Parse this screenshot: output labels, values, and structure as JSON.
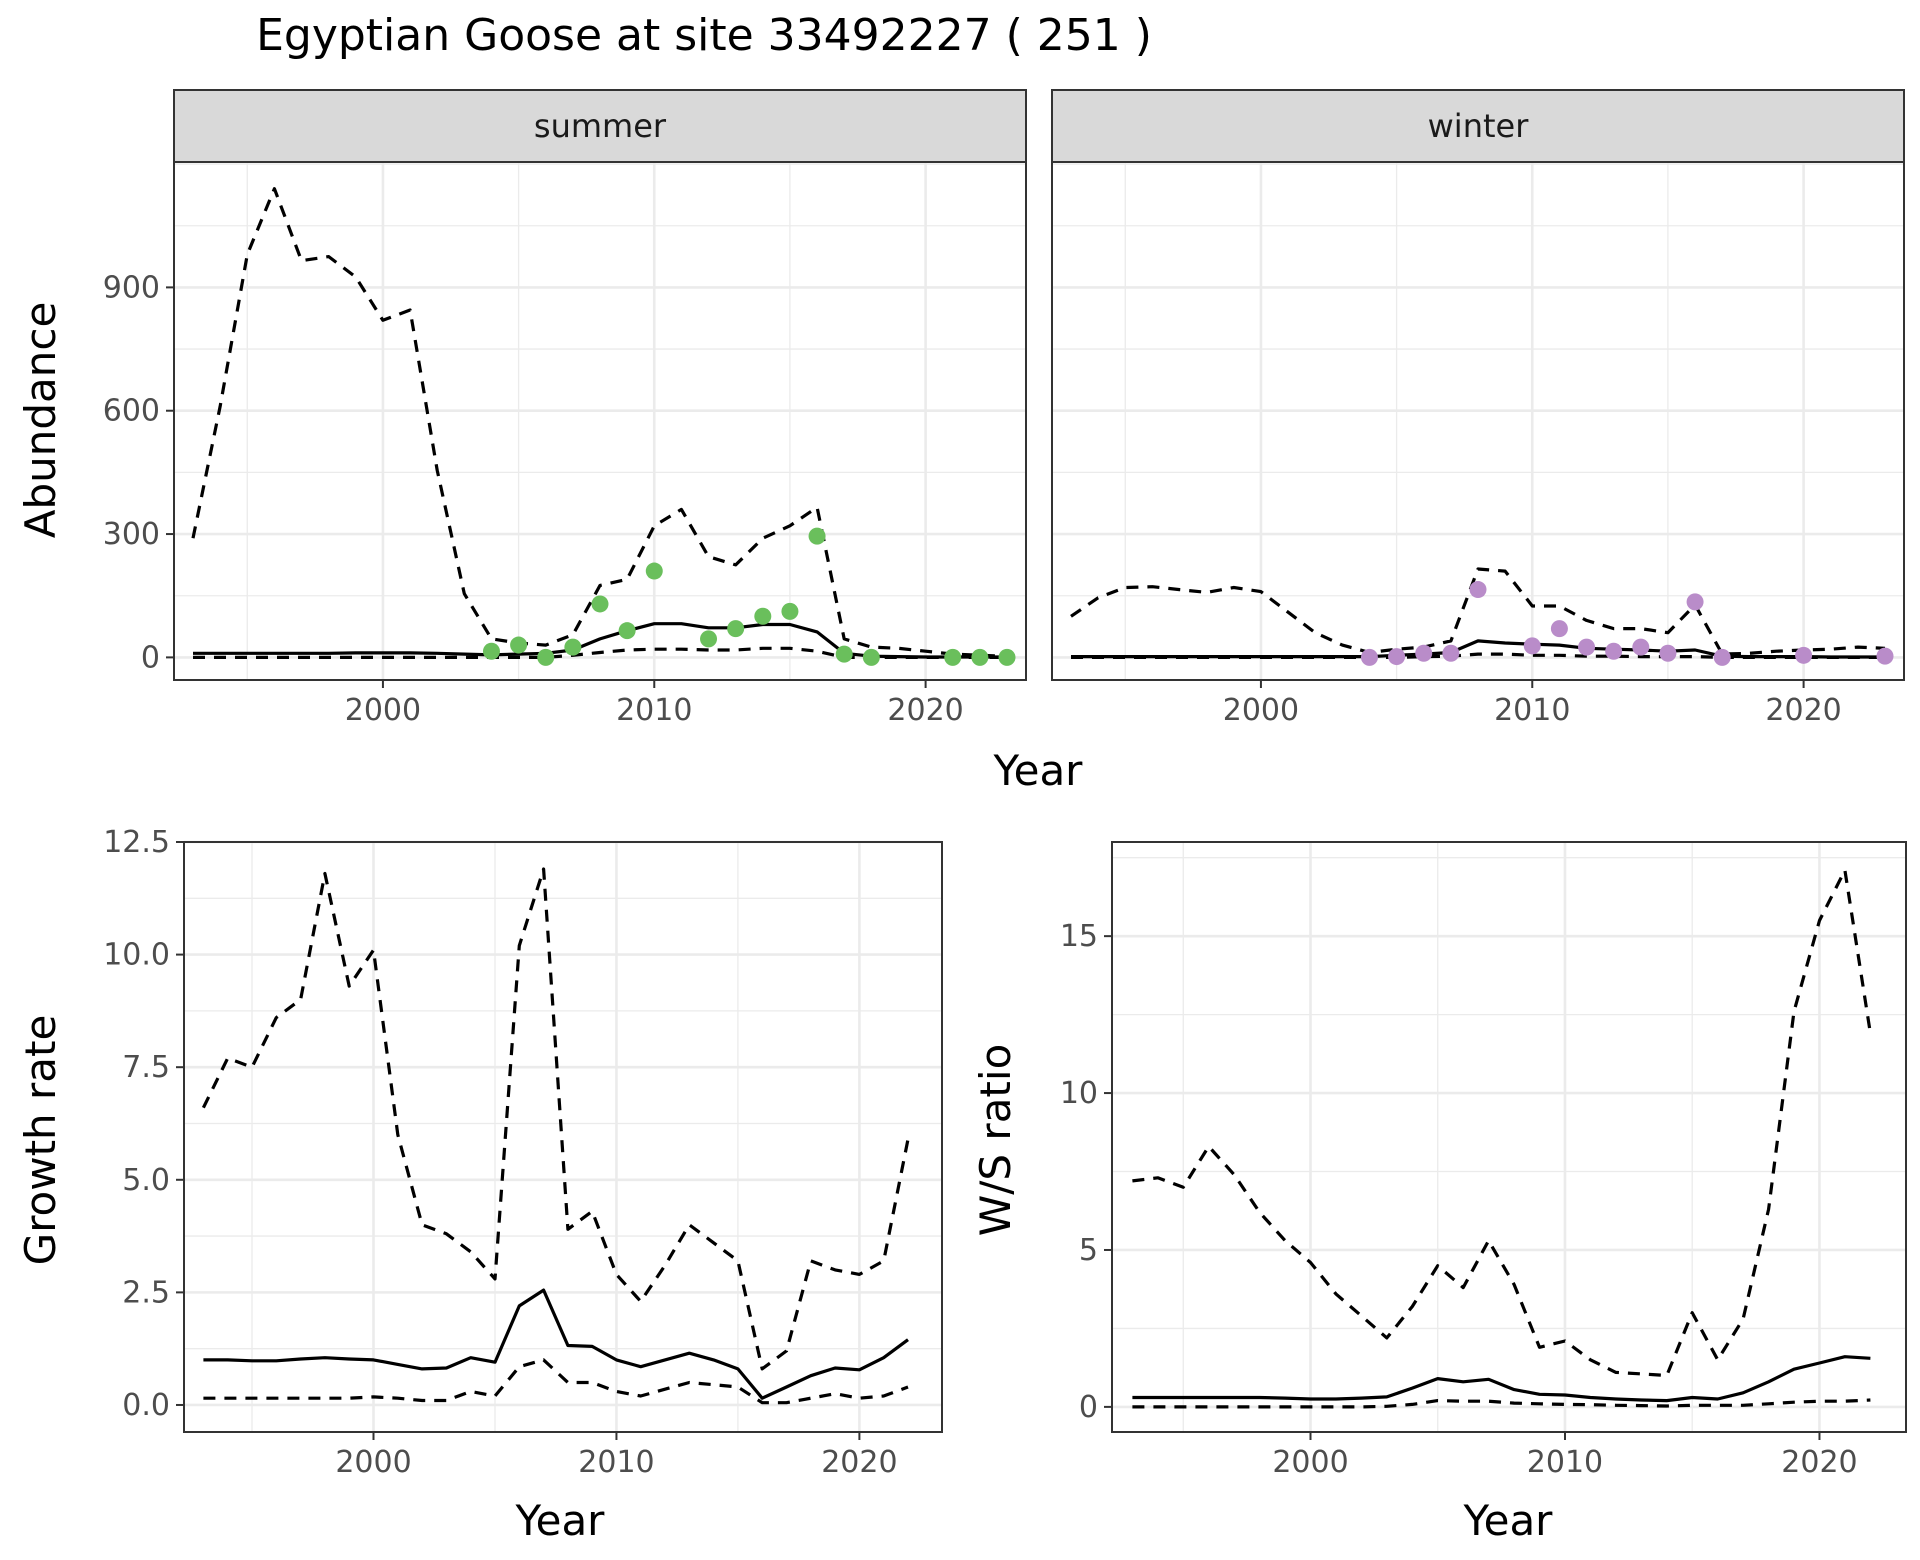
{
  "title": "Egyptian Goose at site 33492227 ( 251 )",
  "colors": {
    "summer_points": "#6abf5c",
    "winter_points": "#b98cc9",
    "lines": "#000000"
  },
  "shared": {
    "top_xlabel": "Year",
    "top_ylabel": "Abundance"
  },
  "chart_data": [
    {
      "type": "line",
      "facet": "summer",
      "xlim": [
        1992.3,
        2023.7
      ],
      "ylim": [
        -55,
        1205
      ],
      "x_ticks": [
        2000,
        2010,
        2020
      ],
      "y_ticks": [
        0,
        300,
        600,
        900
      ],
      "series": [
        {
          "style": "solid",
          "x": [
            1993,
            1994,
            1995,
            1996,
            1997,
            1998,
            1999,
            2000,
            2001,
            2002,
            2003,
            2004,
            2005,
            2006,
            2007,
            2008,
            2009,
            2010,
            2011,
            2012,
            2013,
            2014,
            2015,
            2016,
            2017,
            2018,
            2019,
            2020,
            2021,
            2022,
            2023
          ],
          "values": [
            10,
            10,
            10,
            10,
            10,
            10,
            11,
            11,
            11,
            10,
            8,
            6,
            8,
            10,
            18,
            45,
            65,
            82,
            82,
            72,
            72,
            80,
            80,
            62,
            10,
            3,
            2,
            1,
            1,
            1,
            1
          ]
        },
        {
          "style": "dashed",
          "x": [
            1993,
            1994,
            1995,
            1996,
            1997,
            1998,
            1999,
            2000,
            2001,
            2002,
            2003,
            2004,
            2005,
            2006,
            2007,
            2008,
            2009,
            2010,
            2011,
            2012,
            2013,
            2014,
            2015,
            2016,
            2017,
            2018,
            2019,
            2020,
            2021,
            2022,
            2023
          ],
          "values": [
            290,
            610,
            980,
            1140,
            965,
            975,
            925,
            820,
            845,
            455,
            155,
            45,
            35,
            30,
            55,
            175,
            190,
            320,
            360,
            245,
            225,
            290,
            320,
            365,
            45,
            25,
            22,
            15,
            8,
            5,
            3
          ]
        },
        {
          "style": "dashed",
          "x": [
            1993,
            1994,
            1995,
            1996,
            1997,
            1998,
            1999,
            2000,
            2001,
            2002,
            2003,
            2004,
            2005,
            2006,
            2007,
            2008,
            2009,
            2010,
            2011,
            2012,
            2013,
            2014,
            2015,
            2016,
            2017,
            2018,
            2019,
            2020,
            2021,
            2022,
            2023
          ],
          "values": [
            0,
            0,
            0,
            0,
            0,
            0,
            0,
            0,
            0,
            0,
            0,
            0,
            0,
            0,
            5,
            12,
            18,
            20,
            20,
            18,
            18,
            22,
            22,
            15,
            0,
            0,
            0,
            0,
            0,
            0,
            0
          ]
        },
        {
          "style": "points",
          "x": [
            2004,
            2005,
            2006,
            2007,
            2008,
            2009,
            2010,
            2012,
            2013,
            2014,
            2015,
            2016,
            2017,
            2018,
            2021,
            2022,
            2023
          ],
          "values": [
            15,
            30,
            0,
            25,
            130,
            65,
            210,
            45,
            70,
            100,
            112,
            295,
            8,
            0,
            0,
            0,
            0
          ]
        }
      ]
    },
    {
      "type": "line",
      "facet": "winter",
      "xlim": [
        1992.3,
        2023.7
      ],
      "ylim": [
        -55,
        1205
      ],
      "x_ticks": [
        2000,
        2010,
        2020
      ],
      "y_ticks": [],
      "series": [
        {
          "style": "solid",
          "x": [
            1993,
            1994,
            1995,
            1996,
            1997,
            1998,
            1999,
            2000,
            2001,
            2002,
            2003,
            2004,
            2005,
            2006,
            2007,
            2008,
            2009,
            2010,
            2011,
            2012,
            2013,
            2014,
            2015,
            2016,
            2017,
            2018,
            2019,
            2020,
            2021,
            2022,
            2023
          ],
          "values": [
            2,
            2,
            2,
            2,
            2,
            2,
            2,
            2,
            2,
            2,
            2,
            2,
            5,
            8,
            12,
            40,
            35,
            32,
            30,
            22,
            20,
            18,
            15,
            18,
            3,
            2,
            2,
            2,
            1,
            1,
            1
          ]
        },
        {
          "style": "dashed",
          "x": [
            1993,
            1994,
            1995,
            1996,
            1997,
            1998,
            1999,
            2000,
            2001,
            2002,
            2003,
            2004,
            2005,
            2006,
            2007,
            2008,
            2009,
            2010,
            2011,
            2012,
            2013,
            2014,
            2015,
            2016,
            2017,
            2018,
            2019,
            2020,
            2021,
            2022,
            2023
          ],
          "values": [
            100,
            145,
            170,
            172,
            165,
            158,
            170,
            160,
            110,
            60,
            30,
            12,
            20,
            25,
            40,
            215,
            210,
            125,
            125,
            90,
            70,
            70,
            60,
            128,
            8,
            10,
            15,
            18,
            20,
            25,
            22
          ]
        },
        {
          "style": "dashed",
          "x": [
            1993,
            1994,
            1995,
            1996,
            1997,
            1998,
            1999,
            2000,
            2001,
            2002,
            2003,
            2004,
            2005,
            2006,
            2007,
            2008,
            2009,
            2010,
            2011,
            2012,
            2013,
            2014,
            2015,
            2016,
            2017,
            2018,
            2019,
            2020,
            2021,
            2022,
            2023
          ],
          "values": [
            0,
            0,
            0,
            0,
            0,
            0,
            0,
            0,
            0,
            0,
            0,
            0,
            0,
            2,
            3,
            8,
            8,
            5,
            5,
            3,
            3,
            2,
            2,
            2,
            0,
            0,
            0,
            0,
            0,
            0,
            0
          ]
        },
        {
          "style": "points",
          "x": [
            2004,
            2005,
            2006,
            2007,
            2008,
            2010,
            2011,
            2012,
            2013,
            2014,
            2015,
            2016,
            2017,
            2020,
            2023
          ],
          "values": [
            0,
            2,
            10,
            10,
            165,
            28,
            70,
            25,
            15,
            25,
            10,
            135,
            0,
            5,
            3
          ]
        }
      ]
    },
    {
      "type": "line",
      "xlabel": "Year",
      "ylabel": "Growth rate",
      "xlim": [
        1992.2,
        2023.4
      ],
      "ylim": [
        -0.6,
        12.5
      ],
      "x_ticks": [
        2000,
        2010,
        2020
      ],
      "y_ticks": [
        "0.0",
        "2.5",
        "5.0",
        "7.5",
        "10.0",
        "12.5"
      ],
      "series": [
        {
          "style": "solid",
          "x": [
            1993,
            1994,
            1995,
            1996,
            1997,
            1998,
            1999,
            2000,
            2001,
            2002,
            2003,
            2004,
            2005,
            2006,
            2007,
            2008,
            2009,
            2010,
            2011,
            2012,
            2013,
            2014,
            2015,
            2016,
            2017,
            2018,
            2019,
            2020,
            2021,
            2022
          ],
          "values": [
            1.0,
            1.0,
            0.98,
            0.98,
            1.02,
            1.05,
            1.02,
            1.0,
            0.9,
            0.8,
            0.82,
            1.05,
            0.95,
            2.2,
            2.55,
            1.32,
            1.3,
            1.0,
            0.85,
            1.0,
            1.15,
            1.0,
            0.8,
            0.15,
            0.4,
            0.65,
            0.82,
            0.78,
            1.05,
            1.45
          ]
        },
        {
          "style": "dashed",
          "x": [
            1993,
            1994,
            1995,
            1996,
            1997,
            1998,
            1999,
            2000,
            2001,
            2002,
            2003,
            2004,
            2005,
            2006,
            2007,
            2008,
            2009,
            2010,
            2011,
            2012,
            2013,
            2014,
            2015,
            2016,
            2017,
            2018,
            2019,
            2020,
            2021,
            2022
          ],
          "values": [
            6.6,
            7.7,
            7.5,
            8.6,
            9.0,
            11.8,
            9.3,
            10.1,
            6.0,
            4.0,
            3.8,
            3.4,
            2.8,
            10.2,
            11.9,
            3.9,
            4.3,
            2.9,
            2.3,
            3.1,
            4.0,
            3.6,
            3.2,
            0.8,
            1.2,
            3.2,
            3.0,
            2.9,
            3.2,
            5.9
          ]
        },
        {
          "style": "dashed",
          "x": [
            1993,
            1994,
            1995,
            1996,
            1997,
            1998,
            1999,
            2000,
            2001,
            2002,
            2003,
            2004,
            2005,
            2006,
            2007,
            2008,
            2009,
            2010,
            2011,
            2012,
            2013,
            2014,
            2015,
            2016,
            2017,
            2018,
            2019,
            2020,
            2021,
            2022
          ],
          "values": [
            0.15,
            0.15,
            0.15,
            0.15,
            0.15,
            0.15,
            0.15,
            0.18,
            0.15,
            0.1,
            0.1,
            0.3,
            0.2,
            0.85,
            1.0,
            0.5,
            0.5,
            0.3,
            0.2,
            0.35,
            0.5,
            0.45,
            0.4,
            0.05,
            0.05,
            0.15,
            0.25,
            0.15,
            0.2,
            0.4
          ]
        }
      ]
    },
    {
      "type": "line",
      "xlabel": "Year",
      "ylabel": "W/S ratio",
      "xlim": [
        1992.2,
        2023.4
      ],
      "ylim": [
        -0.8,
        18.0
      ],
      "x_ticks": [
        2000,
        2010,
        2020
      ],
      "y_ticks": [
        0,
        5,
        10,
        15
      ],
      "series": [
        {
          "style": "solid",
          "x": [
            1993,
            1994,
            1995,
            1996,
            1997,
            1998,
            1999,
            2000,
            2001,
            2002,
            2003,
            2004,
            2005,
            2006,
            2007,
            2008,
            2009,
            2010,
            2011,
            2012,
            2013,
            2014,
            2015,
            2016,
            2017,
            2018,
            2019,
            2020,
            2021,
            2022
          ],
          "values": [
            0.3,
            0.3,
            0.3,
            0.3,
            0.3,
            0.3,
            0.28,
            0.25,
            0.25,
            0.28,
            0.32,
            0.6,
            0.9,
            0.8,
            0.88,
            0.55,
            0.4,
            0.38,
            0.3,
            0.25,
            0.22,
            0.2,
            0.3,
            0.25,
            0.45,
            0.8,
            1.2,
            1.4,
            1.6,
            1.55
          ]
        },
        {
          "style": "dashed",
          "x": [
            1993,
            1994,
            1995,
            1996,
            1997,
            1998,
            1999,
            2000,
            2001,
            2002,
            2003,
            2004,
            2005,
            2006,
            2007,
            2008,
            2009,
            2010,
            2011,
            2012,
            2013,
            2014,
            2015,
            2016,
            2017,
            2018,
            2019,
            2020,
            2021,
            2022
          ],
          "values": [
            7.2,
            7.3,
            7.0,
            8.3,
            7.4,
            6.2,
            5.3,
            4.6,
            3.6,
            2.9,
            2.2,
            3.2,
            4.5,
            3.8,
            5.3,
            3.9,
            1.9,
            2.1,
            1.5,
            1.1,
            1.05,
            1.0,
            3.0,
            1.5,
            2.8,
            6.3,
            12.6,
            15.5,
            17.1,
            11.9
          ]
        },
        {
          "style": "dashed",
          "x": [
            1993,
            1994,
            1995,
            1996,
            1997,
            1998,
            1999,
            2000,
            2001,
            2002,
            2003,
            2004,
            2005,
            2006,
            2007,
            2008,
            2009,
            2010,
            2011,
            2012,
            2013,
            2014,
            2015,
            2016,
            2017,
            2018,
            2019,
            2020,
            2021,
            2022
          ],
          "values": [
            0,
            0,
            0,
            0,
            0,
            0,
            0,
            0,
            0,
            0,
            0.02,
            0.08,
            0.2,
            0.18,
            0.18,
            0.12,
            0.1,
            0.08,
            0.07,
            0.05,
            0.04,
            0.03,
            0.05,
            0.05,
            0.05,
            0.1,
            0.15,
            0.18,
            0.18,
            0.22
          ]
        }
      ]
    }
  ]
}
